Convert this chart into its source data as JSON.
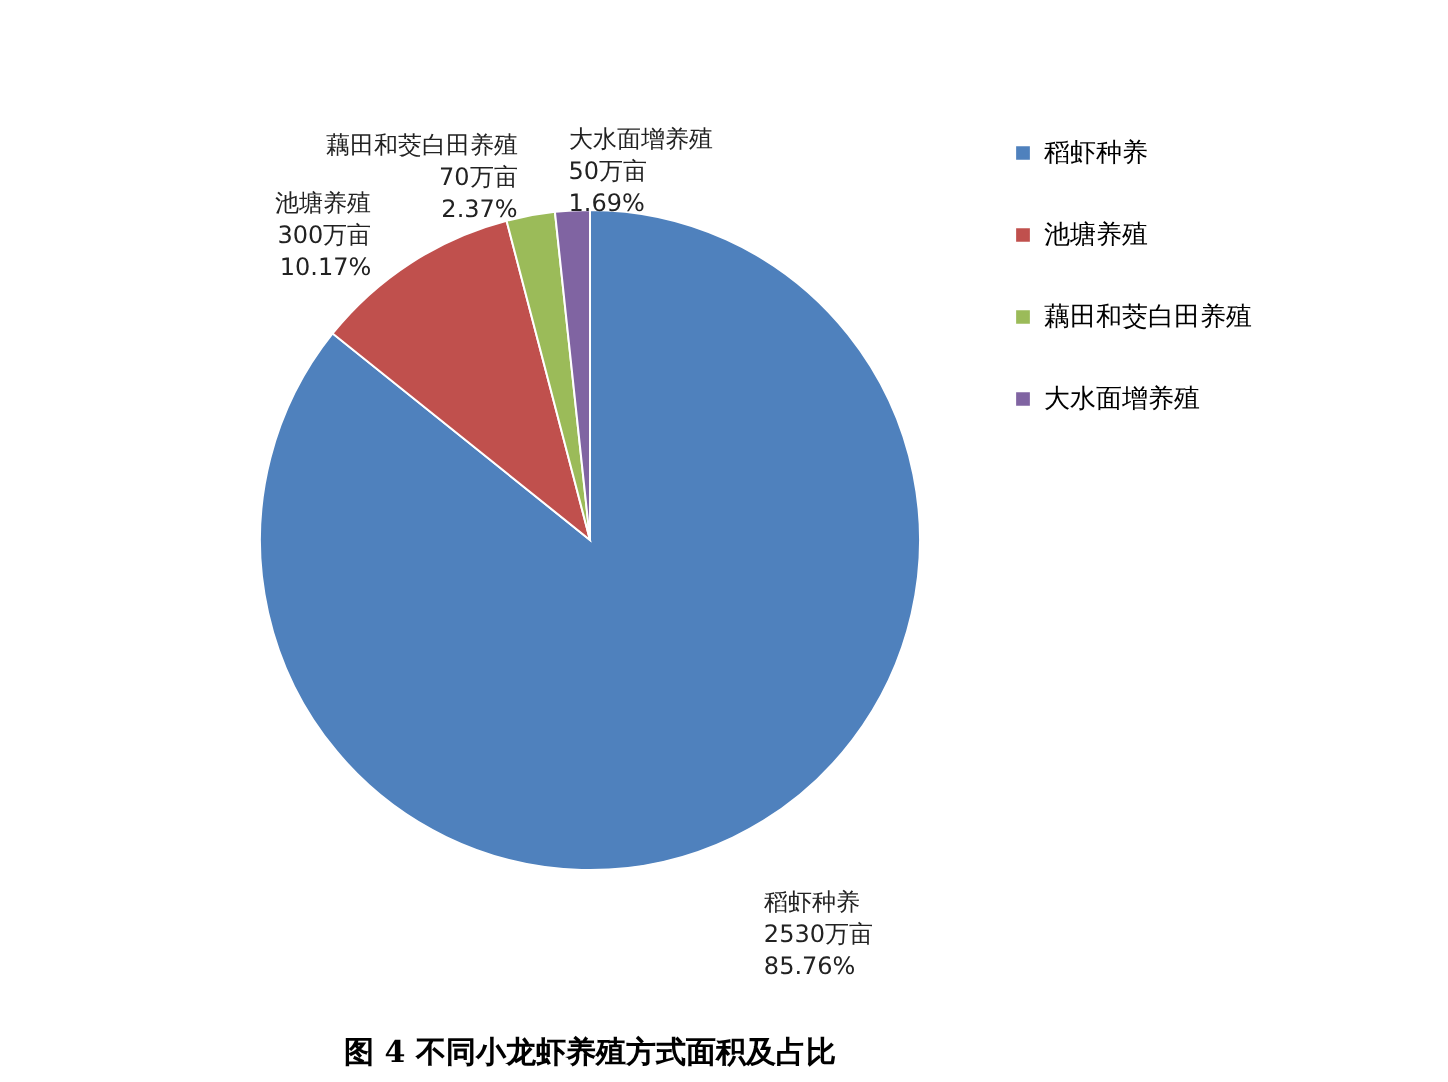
{
  "chart_data": {
    "type": "pie",
    "title": "图 4  不同小龙虾养殖方式面积及占比",
    "categories": [
      "稻虾种养",
      "池塘养殖",
      "藕田和茭白田养殖",
      "大水面增养殖"
    ],
    "values": [
      2530,
      300,
      70,
      50
    ],
    "value_labels": [
      "2530万亩\n85.76%",
      "300万亩\n10.17%",
      "70万亩\n2.37%",
      "50万亩\n1.69%"
    ],
    "colors": [
      "#4f81bd",
      "#c0504d",
      "#9bbb59",
      "#8064a2"
    ],
    "legend": "right"
  }
}
